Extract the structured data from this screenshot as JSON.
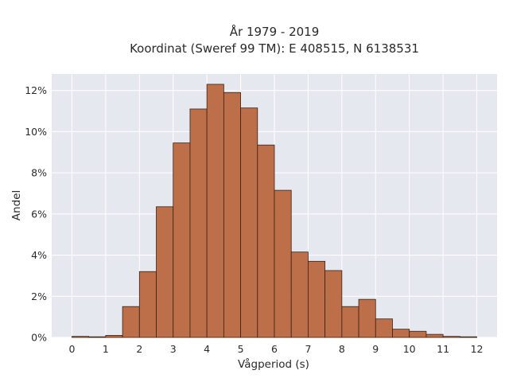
{
  "chart_data": {
    "type": "bar",
    "title_line1": "År 1979 - 2019",
    "title_line2": "Koordinat (Sweref 99 TM): E 408515, N 6138531",
    "xlabel": "Vågperiod (s)",
    "ylabel": "Andel",
    "bin_width": 0.5,
    "bins": [
      {
        "start": 0.0,
        "value": 0.05
      },
      {
        "start": 0.5,
        "value": 0.0
      },
      {
        "start": 1.0,
        "value": 0.1
      },
      {
        "start": 1.5,
        "value": 1.5
      },
      {
        "start": 2.0,
        "value": 3.2
      },
      {
        "start": 2.5,
        "value": 6.35
      },
      {
        "start": 3.0,
        "value": 9.45
      },
      {
        "start": 3.5,
        "value": 11.1
      },
      {
        "start": 4.0,
        "value": 12.3
      },
      {
        "start": 4.5,
        "value": 11.9
      },
      {
        "start": 5.0,
        "value": 11.15
      },
      {
        "start": 5.5,
        "value": 9.35
      },
      {
        "start": 6.0,
        "value": 7.15
      },
      {
        "start": 6.5,
        "value": 4.15
      },
      {
        "start": 7.0,
        "value": 3.7
      },
      {
        "start": 7.5,
        "value": 3.25
      },
      {
        "start": 8.0,
        "value": 1.5
      },
      {
        "start": 8.5,
        "value": 1.85
      },
      {
        "start": 9.0,
        "value": 0.9
      },
      {
        "start": 9.5,
        "value": 0.4
      },
      {
        "start": 10.0,
        "value": 0.3
      },
      {
        "start": 10.5,
        "value": 0.15
      },
      {
        "start": 11.0,
        "value": 0.05
      },
      {
        "start": 11.5,
        "value": 0.02
      }
    ],
    "xlim": [
      -0.6,
      12.6
    ],
    "ylim": [
      0,
      12.8
    ],
    "x_ticks": [
      "0",
      "1",
      "2",
      "3",
      "4",
      "5",
      "6",
      "7",
      "8",
      "9",
      "10",
      "11",
      "12"
    ],
    "y_ticks": [
      "0%",
      "2%",
      "4%",
      "6%",
      "8%",
      "10%",
      "12%"
    ],
    "grid": true,
    "colors": {
      "bar_fill": "#b9683e",
      "bar_edge": "#3a2215",
      "plot_bg": "#e6e8f0",
      "grid": "#ffffff"
    }
  }
}
